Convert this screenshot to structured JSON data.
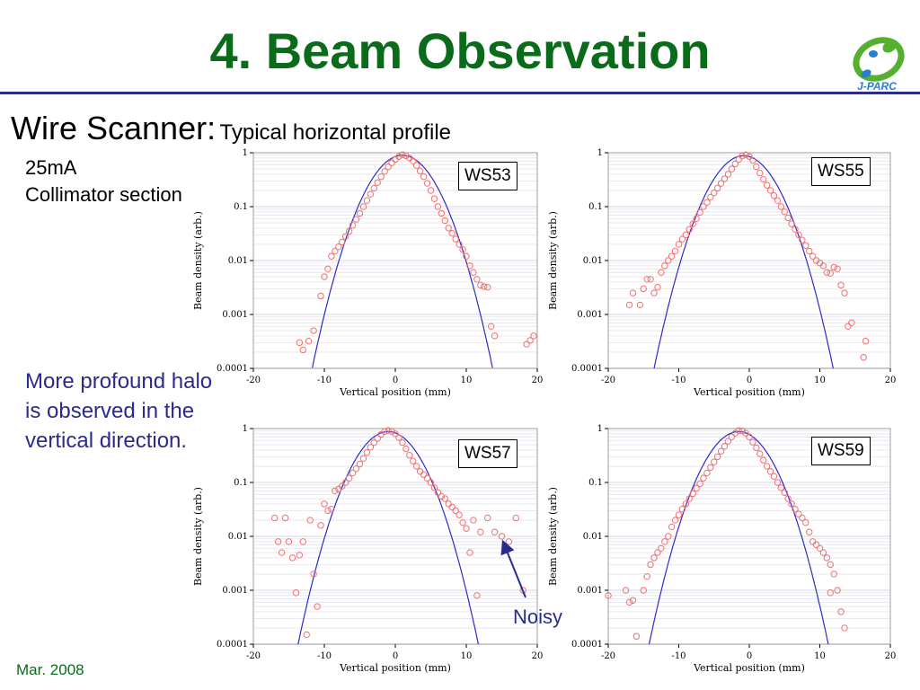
{
  "slide": {
    "title": "4. Beam Observation",
    "subtitle_main": "Wire Scanner:",
    "subtitle_detail": "Typical horizontal profile",
    "condition_line1": "25mA",
    "condition_line2": "Collimator section",
    "note": "More profound halo is observed in the vertical direction.",
    "annotation": "Noisy",
    "date": "Mar. 2008",
    "logo_text": "J-PARC"
  },
  "colors": {
    "title": "#0a6b1a",
    "rule": "#2b2b8c",
    "note": "#2b2b8c",
    "fit_line": "#2b2bc8",
    "data_marker": "#f07070",
    "logo_green": "#55b030",
    "logo_blue": "#2a7ed0"
  },
  "chart_data": [
    {
      "type": "scatter",
      "label": "WS53",
      "xlabel": "Vertical position (mm)",
      "ylabel": "Beam density (arb.)",
      "x_ticks": [
        "-20",
        "-10",
        "0",
        "10",
        "20"
      ],
      "y_ticks": [
        "0.0001",
        "0.001",
        "0.01",
        "0.1",
        "1"
      ],
      "xlim": [
        -20,
        20
      ],
      "ylim": [
        0.0001,
        1
      ],
      "y_scale": "log",
      "grid": true,
      "fit": {
        "type": "gaussian",
        "center": 1.0,
        "sigma": 2.98,
        "peak": 0.9
      },
      "points": [
        [
          -13.5,
          0.0003
        ],
        [
          -13,
          0.00022
        ],
        [
          -12.2,
          0.00032
        ],
        [
          -11.5,
          0.0005
        ],
        [
          -10.5,
          0.0022
        ],
        [
          -10,
          0.005
        ],
        [
          -9.5,
          0.007
        ],
        [
          -9,
          0.012
        ],
        [
          -8.5,
          0.015
        ],
        [
          -8,
          0.018
        ],
        [
          -7.5,
          0.022
        ],
        [
          -7,
          0.028
        ],
        [
          -6.5,
          0.035
        ],
        [
          -6,
          0.045
        ],
        [
          -5.5,
          0.058
        ],
        [
          -5,
          0.075
        ],
        [
          -4.5,
          0.1
        ],
        [
          -4,
          0.13
        ],
        [
          -3.5,
          0.17
        ],
        [
          -3,
          0.22
        ],
        [
          -2.5,
          0.28
        ],
        [
          -2,
          0.36
        ],
        [
          -1.5,
          0.45
        ],
        [
          -1,
          0.55
        ],
        [
          -0.5,
          0.65
        ],
        [
          0,
          0.75
        ],
        [
          0.5,
          0.85
        ],
        [
          1,
          0.92
        ],
        [
          1.5,
          0.88
        ],
        [
          2,
          0.8
        ],
        [
          2.5,
          0.7
        ],
        [
          3,
          0.58
        ],
        [
          3.5,
          0.46
        ],
        [
          4,
          0.36
        ],
        [
          4.5,
          0.27
        ],
        [
          5,
          0.2
        ],
        [
          5.5,
          0.14
        ],
        [
          6,
          0.1
        ],
        [
          6.5,
          0.075
        ],
        [
          7,
          0.055
        ],
        [
          7.5,
          0.04
        ],
        [
          8,
          0.032
        ],
        [
          8.5,
          0.025
        ],
        [
          9,
          0.02
        ],
        [
          9.5,
          0.016
        ],
        [
          10,
          0.012
        ],
        [
          10.5,
          0.008
        ],
        [
          11,
          0.006
        ],
        [
          11.5,
          0.0045
        ],
        [
          12,
          0.0035
        ],
        [
          12.5,
          0.0033
        ],
        [
          13,
          0.0032
        ],
        [
          13.5,
          0.0006
        ],
        [
          14,
          0.0004
        ],
        [
          18.5,
          0.00028
        ],
        [
          19,
          0.00033
        ],
        [
          19.5,
          0.0004
        ]
      ]
    },
    {
      "type": "scatter",
      "label": "WS55",
      "xlabel": "Vertical position (mm)",
      "ylabel": "Beam density (arb.)",
      "x_ticks": [
        "-20",
        "-10",
        "0",
        "10",
        "20"
      ],
      "y_ticks": [
        "0.0001",
        "0.001",
        "0.01",
        "0.1",
        "1"
      ],
      "xlim": [
        -20,
        20
      ],
      "ylim": [
        0.0001,
        1
      ],
      "y_scale": "log",
      "grid": true,
      "fit": {
        "type": "gaussian",
        "center": -0.8,
        "sigma": 2.98,
        "peak": 0.88
      },
      "points": [
        [
          -17,
          0.0015
        ],
        [
          -16.5,
          0.0025
        ],
        [
          -15.5,
          0.0015
        ],
        [
          -15,
          0.003
        ],
        [
          -14.5,
          0.0045
        ],
        [
          -14,
          0.0045
        ],
        [
          -13.5,
          0.0025
        ],
        [
          -13,
          0.0032
        ],
        [
          -12.5,
          0.006
        ],
        [
          -12,
          0.008
        ],
        [
          -11.5,
          0.01
        ],
        [
          -11,
          0.012
        ],
        [
          -10.5,
          0.015
        ],
        [
          -10,
          0.02
        ],
        [
          -9.5,
          0.025
        ],
        [
          -9,
          0.03
        ],
        [
          -8.5,
          0.038
        ],
        [
          -8,
          0.048
        ],
        [
          -7.5,
          0.06
        ],
        [
          -7,
          0.078
        ],
        [
          -6.5,
          0.1
        ],
        [
          -6,
          0.12
        ],
        [
          -5.5,
          0.15
        ],
        [
          -5,
          0.18
        ],
        [
          -4.5,
          0.22
        ],
        [
          -4,
          0.27
        ],
        [
          -3.5,
          0.33
        ],
        [
          -3,
          0.4
        ],
        [
          -2.5,
          0.5
        ],
        [
          -2,
          0.62
        ],
        [
          -1.5,
          0.75
        ],
        [
          -1,
          0.87
        ],
        [
          -0.5,
          0.92
        ],
        [
          0,
          0.85
        ],
        [
          0.5,
          0.72
        ],
        [
          1,
          0.55
        ],
        [
          1.5,
          0.42
        ],
        [
          2,
          0.32
        ],
        [
          2.5,
          0.25
        ],
        [
          3,
          0.2
        ],
        [
          3.5,
          0.16
        ],
        [
          4,
          0.13
        ],
        [
          4.5,
          0.1
        ],
        [
          5,
          0.08
        ],
        [
          5.5,
          0.062
        ],
        [
          6,
          0.048
        ],
        [
          6.5,
          0.038
        ],
        [
          7,
          0.03
        ],
        [
          7.5,
          0.024
        ],
        [
          8,
          0.019
        ],
        [
          8.5,
          0.015
        ],
        [
          9,
          0.012
        ],
        [
          9.5,
          0.01
        ],
        [
          10,
          0.009
        ],
        [
          10.5,
          0.008
        ],
        [
          11,
          0.006
        ],
        [
          11.5,
          0.0058
        ],
        [
          12,
          0.0075
        ],
        [
          12.5,
          0.007
        ],
        [
          13,
          0.0035
        ],
        [
          13.5,
          0.0025
        ],
        [
          14,
          0.0006
        ],
        [
          14.5,
          0.0007
        ],
        [
          16.5,
          0.00032
        ],
        [
          16.2,
          0.00016
        ]
      ]
    },
    {
      "type": "scatter",
      "label": "WS57",
      "xlabel": "Vertical position (mm)",
      "ylabel": "Beam density (arb.)",
      "x_ticks": [
        "-20",
        "-10",
        "0",
        "10",
        "20"
      ],
      "y_ticks": [
        "0.0001",
        "0.001",
        "0.01",
        "0.1",
        "1"
      ],
      "xlim": [
        -20,
        20
      ],
      "ylim": [
        0.0001,
        1
      ],
      "y_scale": "log",
      "grid": true,
      "fit": {
        "type": "gaussian",
        "center": -1.0,
        "sigma": 2.98,
        "peak": 0.88
      },
      "points": [
        [
          -17,
          0.022
        ],
        [
          -16.5,
          0.008
        ],
        [
          -16,
          0.005
        ],
        [
          -15.5,
          0.022
        ],
        [
          -15,
          0.008
        ],
        [
          -14.5,
          0.004
        ],
        [
          -14,
          0.0009
        ],
        [
          -13.5,
          0.0045
        ],
        [
          -13,
          0.008
        ],
        [
          -12.5,
          0.00015
        ],
        [
          -12,
          0.02
        ],
        [
          -11.5,
          0.002
        ],
        [
          -11,
          0.0005
        ],
        [
          -10.5,
          0.016
        ],
        [
          -10,
          0.04
        ],
        [
          -9.5,
          0.03
        ],
        [
          -9,
          0.032
        ],
        [
          -8.5,
          0.07
        ],
        [
          -8,
          0.075
        ],
        [
          -7.5,
          0.085
        ],
        [
          -7,
          0.1
        ],
        [
          -6.5,
          0.12
        ],
        [
          -6,
          0.15
        ],
        [
          -5.5,
          0.18
        ],
        [
          -5,
          0.22
        ],
        [
          -4.5,
          0.28
        ],
        [
          -4,
          0.36
        ],
        [
          -3.5,
          0.45
        ],
        [
          -3,
          0.55
        ],
        [
          -2.5,
          0.66
        ],
        [
          -2,
          0.78
        ],
        [
          -1.5,
          0.88
        ],
        [
          -1,
          0.92
        ],
        [
          -0.5,
          0.88
        ],
        [
          0,
          0.8
        ],
        [
          0.5,
          0.68
        ],
        [
          1,
          0.55
        ],
        [
          1.5,
          0.42
        ],
        [
          2,
          0.32
        ],
        [
          2.5,
          0.25
        ],
        [
          3,
          0.2
        ],
        [
          3.5,
          0.16
        ],
        [
          4,
          0.14
        ],
        [
          4.5,
          0.12
        ],
        [
          5,
          0.1
        ],
        [
          5.5,
          0.08
        ],
        [
          6,
          0.065
        ],
        [
          6.5,
          0.055
        ],
        [
          7,
          0.05
        ],
        [
          7.5,
          0.04
        ],
        [
          8,
          0.035
        ],
        [
          8.5,
          0.03
        ],
        [
          9,
          0.025
        ],
        [
          9.5,
          0.018
        ],
        [
          10,
          0.014
        ],
        [
          10.5,
          0.005
        ],
        [
          11,
          0.02
        ],
        [
          11.5,
          0.0008
        ],
        [
          12,
          0.012
        ],
        [
          13,
          0.022
        ],
        [
          14,
          0.012
        ],
        [
          15,
          0.01
        ],
        [
          16,
          0.008
        ],
        [
          17,
          0.022
        ],
        [
          18,
          0.001
        ]
      ]
    },
    {
      "type": "scatter",
      "label": "WS59",
      "xlabel": "Vertical position (mm)",
      "ylabel": "Beam density (arb.)",
      "x_ticks": [
        "-20",
        "-10",
        "0",
        "10",
        "20"
      ],
      "y_ticks": [
        "0.0001",
        "0.001",
        "0.01",
        "0.1",
        "1"
      ],
      "xlim": [
        -20,
        20
      ],
      "ylim": [
        0.0001,
        1
      ],
      "y_scale": "log",
      "grid": true,
      "fit": {
        "type": "gaussian",
        "center": -1.5,
        "sigma": 2.98,
        "peak": 0.88
      },
      "points": [
        [
          -20,
          0.0008
        ],
        [
          -17.5,
          0.001
        ],
        [
          -17,
          0.0006
        ],
        [
          -16.5,
          0.00065
        ],
        [
          -16,
          0.00014
        ],
        [
          -15,
          0.001
        ],
        [
          -14.5,
          0.0018
        ],
        [
          -14,
          0.003
        ],
        [
          -13.5,
          0.004
        ],
        [
          -13,
          0.005
        ],
        [
          -12.5,
          0.006
        ],
        [
          -12,
          0.008
        ],
        [
          -11.5,
          0.01
        ],
        [
          -11,
          0.015
        ],
        [
          -10.5,
          0.02
        ],
        [
          -10,
          0.025
        ],
        [
          -9.5,
          0.032
        ],
        [
          -9,
          0.04
        ],
        [
          -8.5,
          0.05
        ],
        [
          -8,
          0.062
        ],
        [
          -7.5,
          0.078
        ],
        [
          -7,
          0.095
        ],
        [
          -6.5,
          0.12
        ],
        [
          -6,
          0.15
        ],
        [
          -5.5,
          0.19
        ],
        [
          -5,
          0.24
        ],
        [
          -4.5,
          0.3
        ],
        [
          -4,
          0.38
        ],
        [
          -3.5,
          0.47
        ],
        [
          -3,
          0.58
        ],
        [
          -2.5,
          0.7
        ],
        [
          -2,
          0.82
        ],
        [
          -1.5,
          0.92
        ],
        [
          -1,
          0.9
        ],
        [
          -0.5,
          0.82
        ],
        [
          0,
          0.7
        ],
        [
          0.5,
          0.56
        ],
        [
          1,
          0.44
        ],
        [
          1.5,
          0.34
        ],
        [
          2,
          0.26
        ],
        [
          2.5,
          0.2
        ],
        [
          3,
          0.16
        ],
        [
          3.5,
          0.13
        ],
        [
          4,
          0.1
        ],
        [
          4.5,
          0.08
        ],
        [
          5,
          0.065
        ],
        [
          5.5,
          0.05
        ],
        [
          6,
          0.04
        ],
        [
          6.5,
          0.032
        ],
        [
          7,
          0.026
        ],
        [
          7.5,
          0.022
        ],
        [
          8,
          0.018
        ],
        [
          8.5,
          0.012
        ],
        [
          9,
          0.008
        ],
        [
          9.5,
          0.007
        ],
        [
          10,
          0.006
        ],
        [
          10.5,
          0.005
        ],
        [
          11,
          0.004
        ],
        [
          11.5,
          0.003
        ],
        [
          12,
          0.002
        ],
        [
          11.5,
          0.0009
        ],
        [
          12.5,
          0.001
        ],
        [
          13,
          0.0004
        ],
        [
          13.5,
          0.0002
        ]
      ]
    }
  ]
}
